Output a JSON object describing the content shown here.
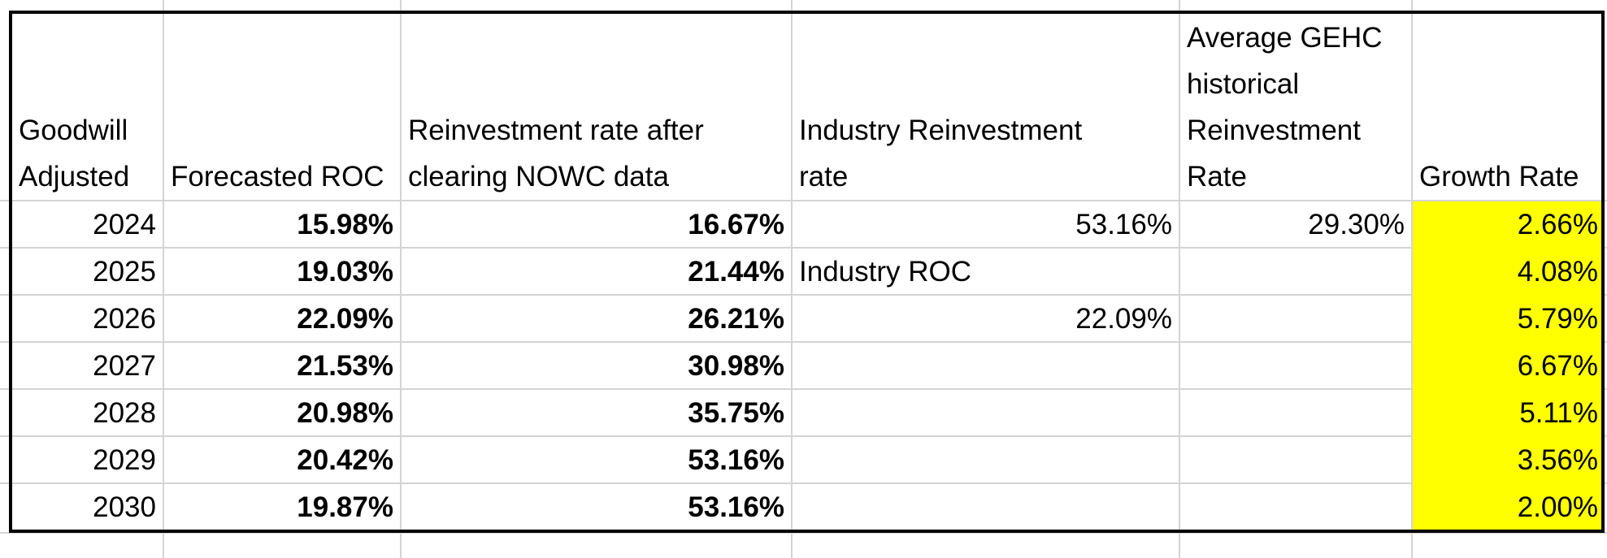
{
  "headers": {
    "year": [
      "Goodwill",
      "Adjusted"
    ],
    "roc": [
      "Forecasted ROC"
    ],
    "reinvest": [
      "Reinvestment rate after",
      "clearing NOWC data"
    ],
    "industry_reinvest": [
      "Industry Reinvestment",
      "rate"
    ],
    "avg_hist": [
      "Average GEHC",
      "historical",
      "Reinvestment",
      "Rate"
    ],
    "growth": [
      "Growth Rate"
    ]
  },
  "rows": [
    {
      "year": "2024",
      "roc": "15.98%",
      "reinvest": "16.67%",
      "industry": "53.16%",
      "avg": "29.30%",
      "growth": "2.66%"
    },
    {
      "year": "2025",
      "roc": "19.03%",
      "reinvest": "21.44%",
      "industry": "Industry ROC",
      "avg": "",
      "growth": "4.08%"
    },
    {
      "year": "2026",
      "roc": "22.09%",
      "reinvest": "26.21%",
      "industry": "22.09%",
      "avg": "",
      "growth": "5.79%"
    },
    {
      "year": "2027",
      "roc": "21.53%",
      "reinvest": "30.98%",
      "industry": "",
      "avg": "",
      "growth": "6.67%"
    },
    {
      "year": "2028",
      "roc": "20.98%",
      "reinvest": "35.75%",
      "industry": "",
      "avg": "",
      "growth": "5.11%"
    },
    {
      "year": "2029",
      "roc": "20.42%",
      "reinvest": "53.16%",
      "industry": "",
      "avg": "",
      "growth": "3.56%"
    },
    {
      "year": "2030",
      "roc": "19.87%",
      "reinvest": "53.16%",
      "industry": "",
      "avg": "",
      "growth": "2.00%"
    }
  ],
  "colors": {
    "highlight": "#ffff00",
    "gridline": "#d4d4d4",
    "border": "#000000"
  }
}
